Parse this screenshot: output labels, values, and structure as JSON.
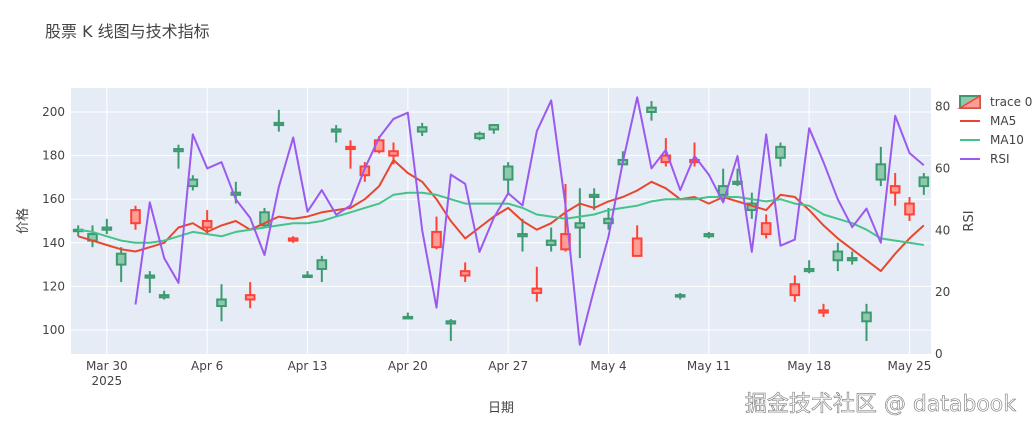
{
  "chart_data": {
    "type": "candlestick",
    "title": "股票 K 线图与技术指标",
    "xlabel": "日期",
    "ylabel": "价格",
    "y2label": "RSI",
    "xlim": [
      "2025-03-28",
      "2025-05-26"
    ],
    "ylim": [
      89,
      211
    ],
    "y2lim": [
      0,
      86
    ],
    "xticks": [
      "Mar 30\n2025",
      "Apr 6",
      "Apr 13",
      "Apr 20",
      "Apr 27",
      "May 4",
      "May 11",
      "May 18",
      "May 25"
    ],
    "yticks": [
      100,
      120,
      140,
      160,
      180,
      200
    ],
    "y2ticks": [
      0,
      20,
      40,
      60,
      80
    ],
    "legend_position": "top-right",
    "colors": {
      "increasing": "#3d9970",
      "decreasing": "#ff4136",
      "ma5": "#e8472e",
      "ma10": "#46c28b",
      "rsi": "#9b59f0",
      "plot_bg": "#e5ecf6"
    },
    "series": [
      {
        "name": "trace 0",
        "kind": "ohlc",
        "dates": [
          "2025-03-28",
          "2025-03-29",
          "2025-03-30",
          "2025-03-31",
          "2025-04-01",
          "2025-04-02",
          "2025-04-03",
          "2025-04-04",
          "2025-04-05",
          "2025-04-06",
          "2025-04-07",
          "2025-04-08",
          "2025-04-09",
          "2025-04-10",
          "2025-04-11",
          "2025-04-12",
          "2025-04-13",
          "2025-04-14",
          "2025-04-15",
          "2025-04-16",
          "2025-04-17",
          "2025-04-18",
          "2025-04-19",
          "2025-04-20",
          "2025-04-21",
          "2025-04-22",
          "2025-04-23",
          "2025-04-24",
          "2025-04-25",
          "2025-04-26",
          "2025-04-27",
          "2025-04-28",
          "2025-04-29",
          "2025-04-30",
          "2025-05-01",
          "2025-05-02",
          "2025-05-03",
          "2025-05-04",
          "2025-05-05",
          "2025-05-06",
          "2025-05-07",
          "2025-05-08",
          "2025-05-09",
          "2025-05-10",
          "2025-05-11",
          "2025-05-12",
          "2025-05-13",
          "2025-05-14",
          "2025-05-15",
          "2025-05-16",
          "2025-05-17",
          "2025-05-18",
          "2025-05-19",
          "2025-05-20",
          "2025-05-21",
          "2025-05-22",
          "2025-05-23",
          "2025-05-24",
          "2025-05-25",
          "2025-05-26"
        ],
        "open": [
          146,
          141,
          146,
          130,
          155,
          124,
          115,
          182,
          166,
          150,
          111,
          162,
          116,
          148,
          194,
          142,
          125,
          128,
          191,
          184,
          175,
          187,
          182,
          106,
          191,
          145,
          103,
          127,
          188,
          192,
          169,
          143,
          119,
          139,
          144,
          147,
          161,
          149,
          176,
          142,
          200,
          180,
          116,
          178,
          143,
          162,
          167,
          155,
          149,
          179,
          121,
          127,
          109,
          132,
          132,
          104,
          169,
          166,
          158,
          166
        ],
        "close": [
          146,
          144,
          147,
          135,
          149,
          125,
          116,
          183,
          169,
          147,
          114,
          163,
          114,
          154,
          195,
          141,
          125,
          132,
          192,
          183,
          171,
          182,
          180,
          106,
          193,
          138,
          104,
          125,
          190,
          194,
          175,
          144,
          117,
          141,
          137,
          149,
          162,
          151,
          178,
          134,
          202,
          177,
          116,
          177,
          144,
          166,
          168,
          158,
          144,
          184,
          116,
          128,
          108,
          136,
          133,
          108,
          176,
          163,
          153,
          170
        ],
        "high": [
          148,
          148,
          151,
          138,
          157,
          127,
          118,
          185,
          171,
          155,
          121,
          168,
          122,
          156,
          201,
          143,
          127,
          134,
          194,
          187,
          177,
          189,
          186,
          108,
          195,
          152,
          105,
          131,
          191,
          194,
          177,
          151,
          129,
          147,
          167,
          165,
          165,
          156,
          182,
          148,
          205,
          188,
          117,
          186,
          145,
          174,
          174,
          163,
          153,
          186,
          125,
          132,
          112,
          140,
          136,
          112,
          184,
          172,
          161,
          172
        ],
        "low": [
          143,
          138,
          144,
          122,
          146,
          117,
          114,
          174,
          164,
          144,
          104,
          158,
          110,
          147,
          191,
          140,
          124,
          122,
          186,
          174,
          168,
          181,
          176,
          105,
          189,
          137,
          95,
          122,
          187,
          190,
          162,
          136,
          113,
          136,
          136,
          133,
          155,
          146,
          176,
          134,
          196,
          175,
          114,
          175,
          142,
          159,
          166,
          151,
          142,
          175,
          113,
          126,
          106,
          127,
          130,
          95,
          166,
          157,
          150,
          162
        ]
      },
      {
        "name": "MA5",
        "kind": "line",
        "values": [
          143,
          141,
          139,
          137,
          136,
          138,
          140,
          147,
          149,
          145,
          148,
          150,
          146,
          149,
          152,
          151,
          152,
          154,
          155,
          156,
          160,
          166,
          178,
          172,
          168,
          160,
          150,
          142,
          147,
          152,
          156,
          150,
          146,
          149,
          154,
          158,
          156,
          159,
          161,
          164,
          168,
          165,
          160,
          161,
          158,
          161,
          159,
          157,
          155,
          162,
          161,
          155,
          148,
          142,
          137,
          132,
          127,
          135,
          142,
          148
        ]
      },
      {
        "name": "MA10",
        "kind": "line",
        "values": [
          146,
          145,
          143,
          141,
          140,
          140,
          141,
          143,
          145,
          144,
          143,
          145,
          146,
          147,
          148,
          149,
          149,
          150,
          152,
          154,
          156,
          158,
          162,
          163,
          163,
          162,
          160,
          158,
          158,
          158,
          158,
          156,
          153,
          152,
          151,
          152,
          153,
          155,
          156,
          157,
          159,
          160,
          160,
          160,
          161,
          161,
          161,
          160,
          159,
          160,
          158,
          157,
          153,
          151,
          149,
          146,
          142,
          141,
          140,
          139
        ]
      },
      {
        "name": "RSI",
        "kind": "line",
        "values": [
          null,
          null,
          null,
          null,
          16,
          49,
          31,
          23,
          71,
          60,
          62,
          50,
          44,
          32,
          54,
          70,
          46,
          53,
          45,
          48,
          60,
          70,
          76,
          78,
          40,
          15,
          58,
          55,
          33,
          44,
          52,
          48,
          72,
          82,
          48,
          3,
          21,
          38,
          62,
          83,
          60,
          66,
          53,
          64,
          58,
          49,
          64,
          33,
          71,
          35,
          37,
          73,
          62,
          50,
          41,
          47,
          36,
          77,
          65,
          61
        ]
      }
    ]
  },
  "watermark": "掘金技术社区 @ databook"
}
